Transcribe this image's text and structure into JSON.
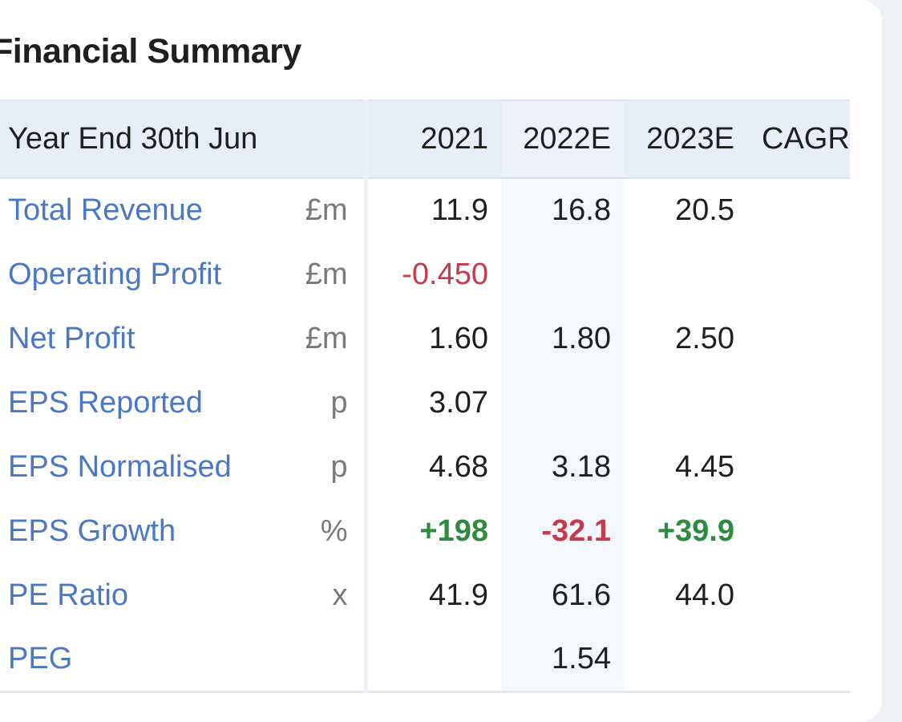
{
  "title": "Financial Summary",
  "table": {
    "headers": [
      "Year End 30th Jun",
      "",
      "2021",
      "2022E",
      "2023E",
      "CAGR"
    ],
    "rows": [
      {
        "label": "Total Revenue",
        "unit": "£m",
        "v2021": "11.9",
        "v2022": "16.8",
        "v2023": "20.5",
        "cagr": ""
      },
      {
        "label": "Operating Profit",
        "unit": "£m",
        "v2021": "-0.450",
        "v2022": "",
        "v2023": "",
        "cagr": ""
      },
      {
        "label": "Net Profit",
        "unit": "£m",
        "v2021": "1.60",
        "v2022": "1.80",
        "v2023": "2.50",
        "cagr": ""
      },
      {
        "label": "EPS Reported",
        "unit": "p",
        "v2021": "3.07",
        "v2022": "",
        "v2023": "",
        "cagr": ""
      },
      {
        "label": "EPS Normalised",
        "unit": "p",
        "v2021": "4.68",
        "v2022": "3.18",
        "v2023": "4.45",
        "cagr": ""
      },
      {
        "label": "EPS Growth",
        "unit": "%",
        "v2021": "+198",
        "v2022": "-32.1",
        "v2023": "+39.9",
        "cagr": ""
      },
      {
        "label": "PE Ratio",
        "unit": "x",
        "v2021": "41.9",
        "v2022": "61.6",
        "v2023": "44.0",
        "cagr": ""
      },
      {
        "label": "PEG",
        "unit": "",
        "v2021": "",
        "v2022": "1.54",
        "v2023": "",
        "cagr": ""
      }
    ]
  },
  "colors": {
    "label_link": "#4a78c2",
    "negative": "#c63a4b",
    "positive": "#2e8b3f",
    "header_bg": "#e8eef8",
    "page_bg": "#eef1f6"
  }
}
